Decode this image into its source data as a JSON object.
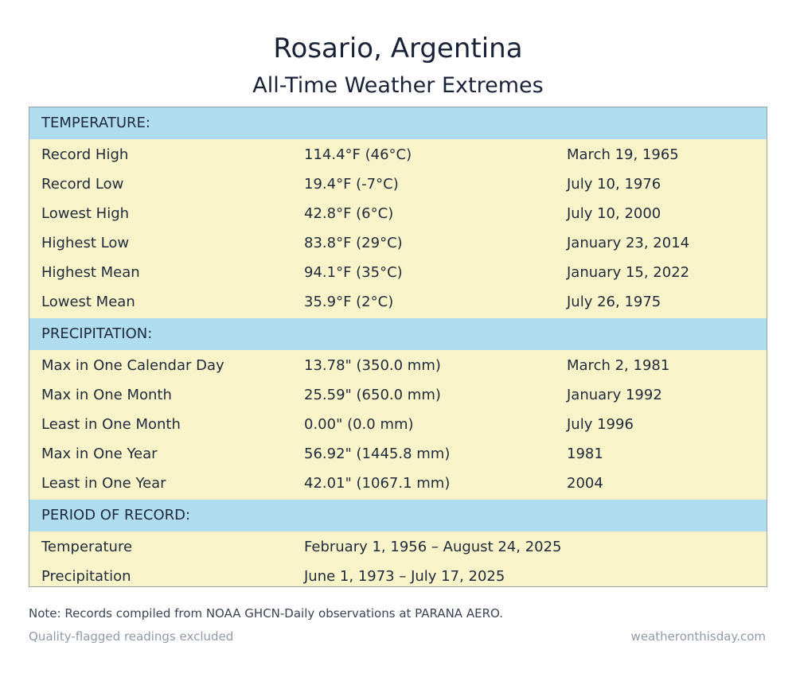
{
  "title": "Rosario, Argentina",
  "subtitle": "All-Time Weather Extremes",
  "sections": [
    {
      "header": "TEMPERATURE:",
      "rows": [
        {
          "label": "Record High",
          "value": "114.4°F (46°C)",
          "date": "March 19, 1965"
        },
        {
          "label": "Record Low",
          "value": "19.4°F (-7°C)",
          "date": "July 10, 1976"
        },
        {
          "label": "Lowest High",
          "value": "42.8°F (6°C)",
          "date": "July 10, 2000"
        },
        {
          "label": "Highest Low",
          "value": "83.8°F (29°C)",
          "date": "January 23, 2014"
        },
        {
          "label": "Highest Mean",
          "value": "94.1°F (35°C)",
          "date": "January 15, 2022"
        },
        {
          "label": "Lowest Mean",
          "value": "35.9°F (2°C)",
          "date": "July 26, 1975"
        }
      ]
    },
    {
      "header": "PRECIPITATION:",
      "rows": [
        {
          "label": "Max in One Calendar Day",
          "value": "13.78\" (350.0 mm)",
          "date": "March 2, 1981"
        },
        {
          "label": "Max in One Month",
          "value": "25.59\" (650.0 mm)",
          "date": "January 1992"
        },
        {
          "label": "Least in One Month",
          "value": "0.00\" (0.0 mm)",
          "date": "July 1996"
        },
        {
          "label": "Max in One Year",
          "value": "56.92\" (1445.8 mm)",
          "date": "1981"
        },
        {
          "label": "Least in One Year",
          "value": "42.01\" (1067.1 mm)",
          "date": "2004"
        }
      ]
    },
    {
      "header": "PERIOD OF RECORD:",
      "rows": [
        {
          "label": "Temperature",
          "value": "February 1, 1956 – August 24, 2025",
          "date": ""
        },
        {
          "label": "Precipitation",
          "value": "June 1, 1973 – July 17, 2025",
          "date": ""
        }
      ]
    }
  ],
  "note": "Note: Records compiled from NOAA GHCN-Daily observations at PARANA AERO.",
  "footer_left": "Quality-flagged readings excluded",
  "footer_right": "weatheronthisday.com"
}
